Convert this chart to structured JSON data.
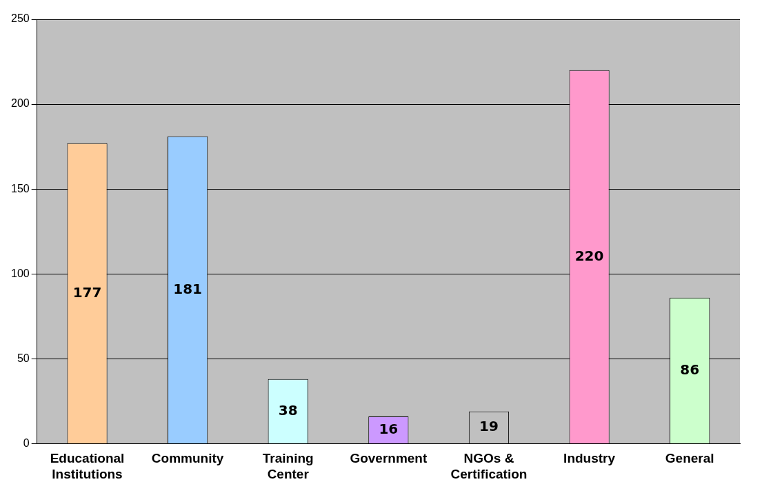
{
  "chart_data": {
    "type": "bar",
    "categories": [
      "Educational Institutions",
      "Community",
      "Training Center",
      "Government",
      "NGOs & Certification",
      "Industry",
      "General"
    ],
    "values": [
      177,
      181,
      38,
      16,
      19,
      220,
      86
    ],
    "colors": [
      "#ffcc99",
      "#99ccff",
      "#ccffff",
      "#cc99ff",
      "#c0c0c0",
      "#ff99cc",
      "#ccffcc"
    ],
    "ylim": [
      0,
      250
    ],
    "yticks": [
      0,
      50,
      100,
      150,
      200,
      250
    ],
    "grid": "y",
    "data_labels": true
  }
}
